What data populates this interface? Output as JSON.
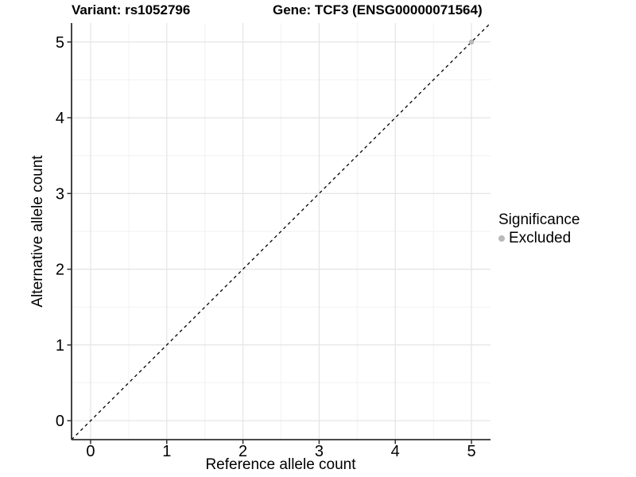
{
  "header": {
    "variant_title": "Variant: rs1052796",
    "gene_title": "Gene: TCF3 (ENSG00000071564)"
  },
  "legend": {
    "title": "Significance",
    "items": [
      {
        "label": "Excluded",
        "color": "#b9b9b9"
      }
    ]
  },
  "chart_data": {
    "type": "scatter",
    "xlabel": "Reference allele count",
    "ylabel": "Alternative allele count",
    "xlim": [
      -0.25,
      5.25
    ],
    "ylim": [
      -0.25,
      5.25
    ],
    "x_ticks": [
      0,
      1,
      2,
      3,
      4,
      5
    ],
    "y_ticks": [
      0,
      1,
      2,
      3,
      4,
      5
    ],
    "x_minor_ticks": [
      0.5,
      1.5,
      2.5,
      3.5,
      4.5
    ],
    "y_minor_ticks": [
      0.5,
      1.5,
      2.5,
      3.5,
      4.5
    ],
    "grid": "major+minor",
    "legend_position": "right",
    "reference_line": {
      "type": "identity",
      "style": "dashed",
      "color": "#000000",
      "from": -0.25,
      "to": 5.25
    },
    "series": [
      {
        "name": "Excluded",
        "marker": "circle",
        "color": "#b9b9b9",
        "points": [
          {
            "x": 5,
            "y": 5
          }
        ]
      }
    ],
    "colors": {
      "axis_line": "#303030",
      "tick_mark": "#303030",
      "grid_major": "#e4e4e4",
      "grid_minor": "#f2f2f2",
      "text": "#000000",
      "background": "#ffffff"
    }
  }
}
